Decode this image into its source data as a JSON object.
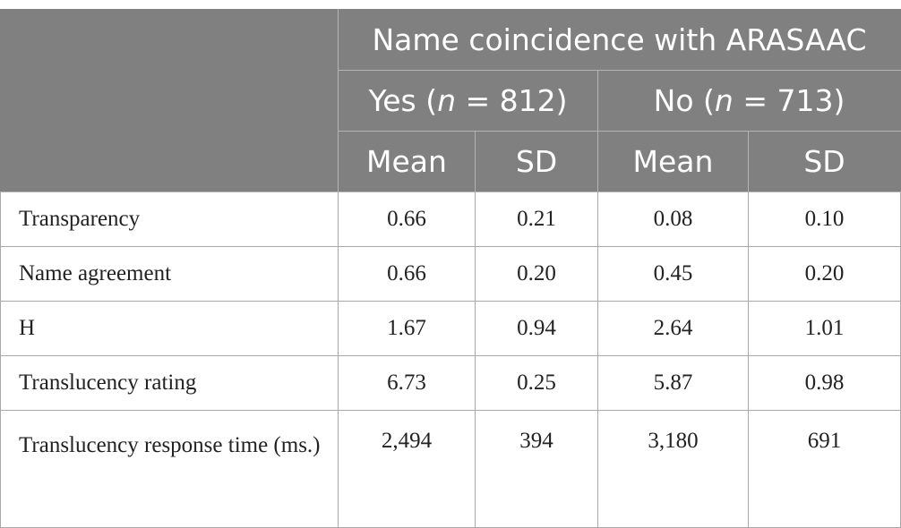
{
  "table": {
    "header": {
      "group_label": "Name coincidence with ARASAAC",
      "yes": {
        "prefix": "Yes (",
        "n_symbol": "n",
        "suffix": " = 812)"
      },
      "no": {
        "prefix": "No (",
        "n_symbol": "n",
        "suffix": " = 713)"
      },
      "stat_labels": [
        "Mean",
        "SD",
        "Mean",
        "SD"
      ]
    },
    "rows": [
      {
        "label": "Transparency",
        "values": [
          "0.66",
          "0.21",
          "0.08",
          "0.10"
        ]
      },
      {
        "label": "Name agreement",
        "values": [
          "0.66",
          "0.20",
          "0.45",
          "0.20"
        ]
      },
      {
        "label": "H",
        "values": [
          "1.67",
          "0.94",
          "2.64",
          "1.01"
        ]
      },
      {
        "label": "Translucency rating",
        "values": [
          "6.73",
          "0.25",
          "5.87",
          "0.98"
        ]
      },
      {
        "label": "Translucency response time (ms.)",
        "values": [
          "2,494",
          "394",
          "3,180",
          "691"
        ]
      }
    ]
  }
}
